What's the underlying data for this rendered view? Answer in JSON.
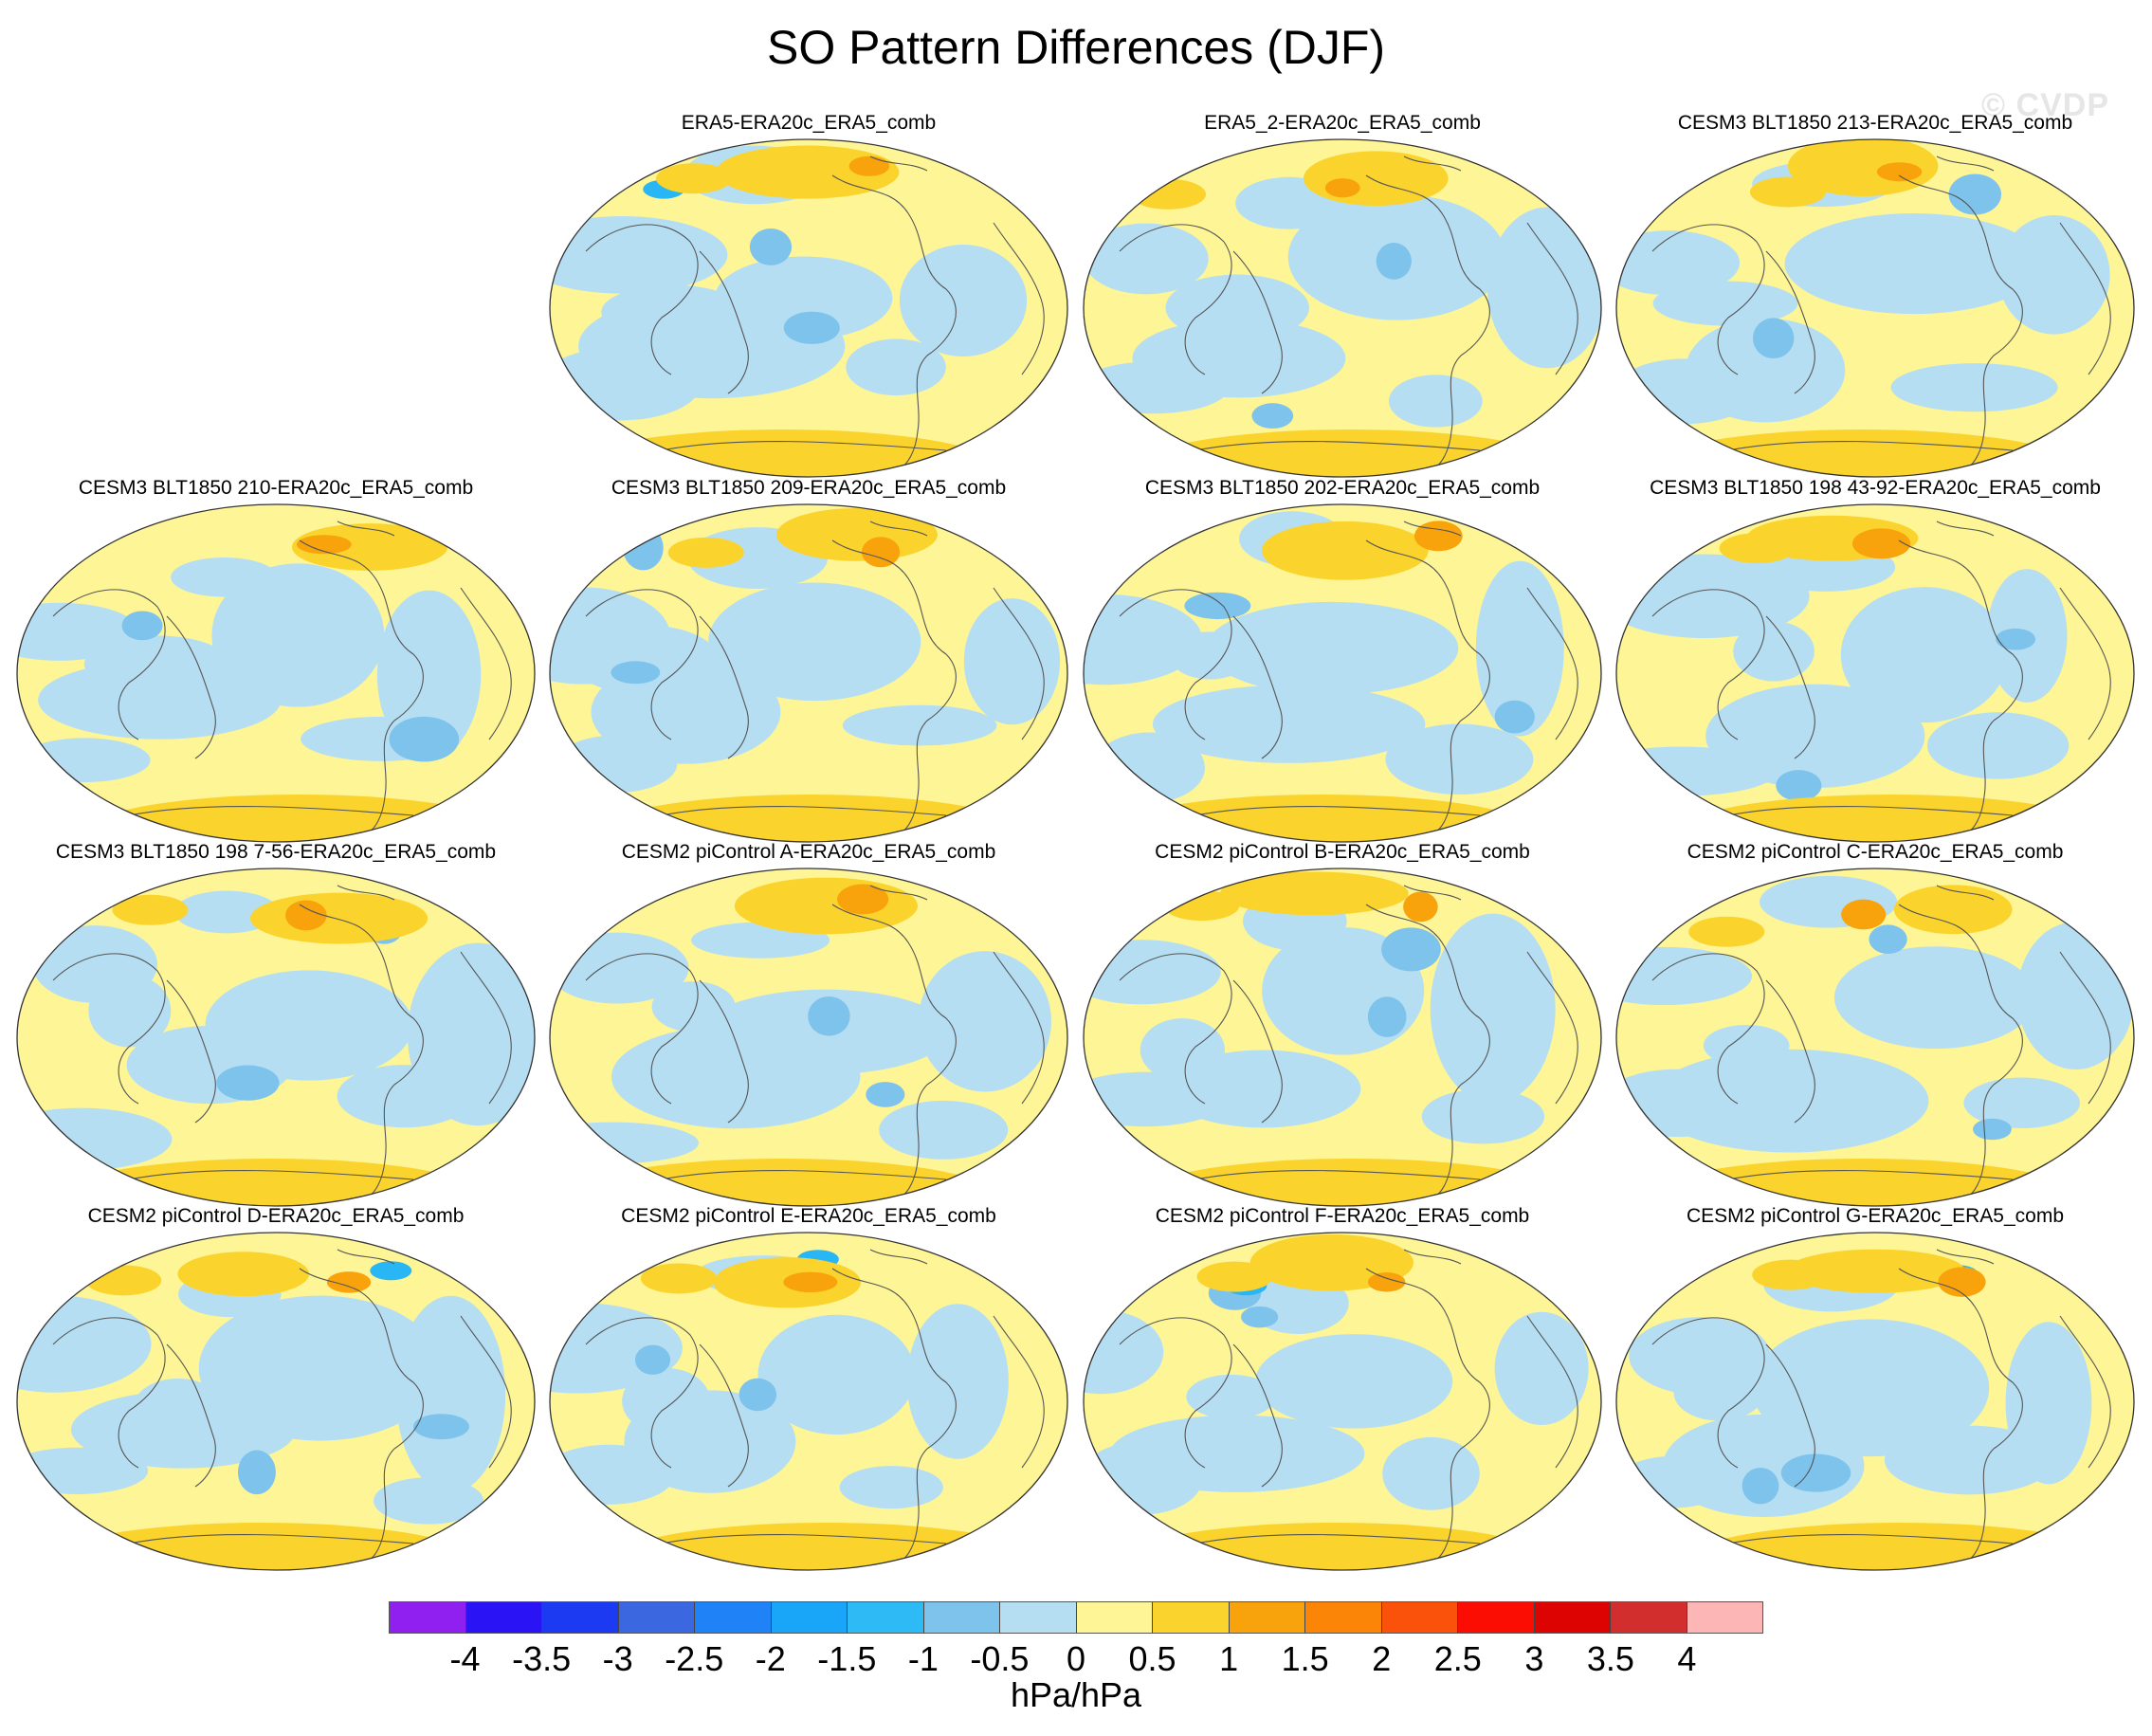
{
  "title": "SO Pattern Differences (DJF)",
  "watermark": "© CVDP",
  "colors": {
    "pos_light": "#fdf596",
    "pos_mid": "#fbd32d",
    "pos_strong": "#f8a30c",
    "neg_light": "#b6def2",
    "neg_mid": "#7ec3ec",
    "neg_strong": "#29b6f5",
    "coast": "#555555"
  },
  "panels": [
    {
      "row": 0,
      "col": 1,
      "title": "ERA5-ERA20c_ERA5_comb"
    },
    {
      "row": 0,
      "col": 2,
      "title": "ERA5_2-ERA20c_ERA5_comb"
    },
    {
      "row": 0,
      "col": 3,
      "title": "CESM3 BLT1850 213-ERA20c_ERA5_comb"
    },
    {
      "row": 1,
      "col": 0,
      "title": "CESM3 BLT1850 210-ERA20c_ERA5_comb"
    },
    {
      "row": 1,
      "col": 1,
      "title": "CESM3 BLT1850 209-ERA20c_ERA5_comb"
    },
    {
      "row": 1,
      "col": 2,
      "title": "CESM3 BLT1850 202-ERA20c_ERA5_comb"
    },
    {
      "row": 1,
      "col": 3,
      "title": "CESM3 BLT1850 198 43-92-ERA20c_ERA5_comb"
    },
    {
      "row": 2,
      "col": 0,
      "title": "CESM3 BLT1850 198 7-56-ERA20c_ERA5_comb"
    },
    {
      "row": 2,
      "col": 1,
      "title": "CESM2 piControl A-ERA20c_ERA5_comb"
    },
    {
      "row": 2,
      "col": 2,
      "title": "CESM2 piControl B-ERA20c_ERA5_comb"
    },
    {
      "row": 2,
      "col": 3,
      "title": "CESM2 piControl C-ERA20c_ERA5_comb"
    },
    {
      "row": 3,
      "col": 0,
      "title": "CESM2 piControl D-ERA20c_ERA5_comb"
    },
    {
      "row": 3,
      "col": 1,
      "title": "CESM2 piControl E-ERA20c_ERA5_comb"
    },
    {
      "row": 3,
      "col": 2,
      "title": "CESM2 piControl F-ERA20c_ERA5_comb"
    },
    {
      "row": 3,
      "col": 3,
      "title": "CESM2 piControl G-ERA20c_ERA5_comb"
    }
  ],
  "colorbar": {
    "colors": [
      "#8f20ef",
      "#2a14f5",
      "#1b3af2",
      "#3b68e0",
      "#1f83f7",
      "#1aa6f8",
      "#2ebbf5",
      "#7ec3ec",
      "#b6def2",
      "#fdf596",
      "#fbd32d",
      "#f8a30c",
      "#fa8507",
      "#fa520a",
      "#fb0d04",
      "#dd0303",
      "#d22e2d",
      "#fdb6b6"
    ],
    "tick_labels": [
      "-4",
      "-3.5",
      "-3",
      "-2.5",
      "-2",
      "-1.5",
      "-1",
      "-0.5",
      "0",
      "0.5",
      "1",
      "1.5",
      "2",
      "2.5",
      "3",
      "3.5",
      "4"
    ],
    "units": "hPa/hPa"
  }
}
